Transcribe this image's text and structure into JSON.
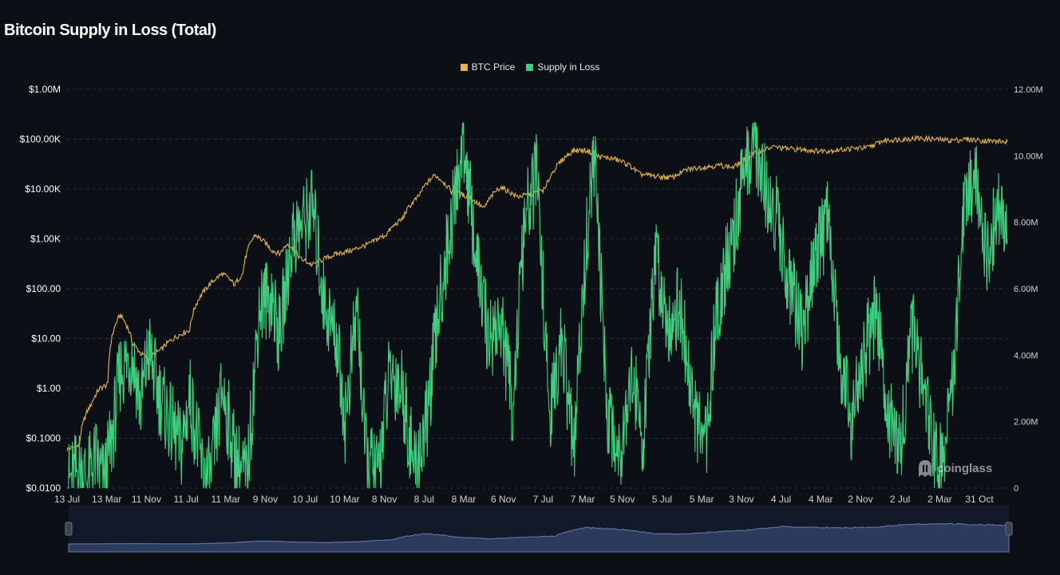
{
  "title": "Bitcoin Supply in Loss (Total)",
  "watermark": "coinglass",
  "legend": [
    {
      "label": "BTC Price",
      "color": "#e8b34b"
    },
    {
      "label": "Supply in Loss",
      "color": "#3ecf7e"
    }
  ],
  "chart_data": {
    "type": "line",
    "x_tick_labels": [
      "13 Jul",
      "13 Mar",
      "11 Nov",
      "11 Jul",
      "11 Mar",
      "9 Nov",
      "10 Jul",
      "10 Mar",
      "8 Nov",
      "8 Jul",
      "8 Mar",
      "6 Nov",
      "7 Jul",
      "7 Mar",
      "5 Nov",
      "5 Jul",
      "5 Mar",
      "3 Nov",
      "4 Jul",
      "4 Mar",
      "2 Nov",
      "2 Jul",
      "2 Mar",
      "31 Oct"
    ],
    "y_left": {
      "scale": "log",
      "ticks": [
        "$1.00M",
        "$100.00K",
        "$10.00K",
        "$1.00K",
        "$100.00",
        "$10.00",
        "$1.00",
        "$0.1000",
        "$0.0100"
      ],
      "range": [
        0.01,
        1000000
      ]
    },
    "y_right": {
      "scale": "linear",
      "ticks": [
        "12.00M",
        "10.00M",
        "8.00M",
        "6.00M",
        "4.00M",
        "2.00M",
        "0"
      ],
      "range": [
        0,
        12000000
      ]
    },
    "grid": true,
    "legend_position": "top-center",
    "x_range": [
      0,
      23
    ],
    "series": [
      {
        "name": "BTC Price",
        "axis": "left",
        "color": "#e8b34b",
        "x": [
          0,
          0.3,
          0.6,
          0.8,
          1.0,
          1.3,
          1.6,
          1.8,
          2.0,
          2.3,
          2.6,
          3.0,
          3.4,
          3.8,
          4.1,
          4.3,
          4.6,
          5.0,
          5.2,
          5.4,
          5.7,
          6.0,
          6.3,
          6.6,
          7.0,
          7.4,
          7.8,
          8.2,
          8.6,
          9.0,
          9.4,
          9.8,
          10.2,
          10.6,
          11.0,
          11.2,
          11.4,
          11.7,
          12.0,
          12.4,
          12.7,
          13.0,
          13.4,
          13.7,
          14.0,
          14.4,
          14.8,
          15.2,
          15.6,
          16.0,
          16.3,
          16.6,
          17.0,
          17.3,
          17.6,
          18.0,
          18.4,
          18.8,
          19.2,
          19.6,
          20.0,
          20.4,
          20.8,
          21.2,
          21.6,
          22.0,
          22.4,
          22.8,
          23.0
        ],
        "values": [
          0.06,
          0.07,
          0.5,
          1.0,
          1.2,
          30,
          8,
          5,
          4,
          6,
          10,
          15,
          100,
          200,
          120,
          200,
          1200,
          600,
          500,
          800,
          400,
          300,
          400,
          500,
          600,
          800,
          1200,
          2500,
          7000,
          19000,
          9000,
          7000,
          4000,
          11000,
          7000,
          7500,
          8000,
          10000,
          30000,
          60000,
          60000,
          45000,
          40000,
          32000,
          20000,
          18000,
          17000,
          25000,
          28000,
          30000,
          27000,
          40000,
          60000,
          70000,
          65000,
          62000,
          58000,
          60000,
          65000,
          68000,
          95000,
          100000,
          105000,
          100000,
          95000,
          100000,
          94000,
          90000,
          88000
        ]
      },
      {
        "name": "Supply in Loss",
        "axis": "right",
        "color": "#3ecf7e",
        "x": [
          0,
          0.3,
          0.5,
          0.7,
          0.9,
          1.1,
          1.3,
          1.6,
          1.8,
          2.0,
          2.2,
          2.5,
          2.8,
          3.0,
          3.3,
          3.5,
          3.8,
          4.1,
          4.4,
          4.7,
          5.0,
          5.2,
          5.5,
          5.8,
          6.0,
          6.3,
          6.6,
          6.8,
          7.1,
          7.3,
          7.6,
          7.9,
          8.2,
          8.5,
          8.8,
          9.1,
          9.4,
          9.7,
          10.0,
          10.3,
          10.6,
          10.9,
          11.2,
          11.5,
          11.8,
          12.1,
          12.4,
          12.7,
          12.9,
          13.2,
          13.5,
          13.8,
          14.1,
          14.4,
          14.7,
          15.0,
          15.3,
          15.6,
          15.9,
          16.2,
          16.5,
          16.8,
          17.1,
          17.4,
          17.7,
          18.0,
          18.3,
          18.6,
          18.9,
          19.2,
          19.5,
          19.8,
          20.1,
          20.4,
          20.7,
          21.0,
          21.3,
          21.6,
          21.9,
          22.2,
          22.5,
          22.8,
          23.0
        ],
        "values": [
          100000,
          600000,
          300000,
          900000,
          150000,
          1500000,
          3500000,
          4000000,
          2500000,
          4200000,
          3000000,
          2000000,
          1200000,
          2800000,
          600000,
          200000,
          3000000,
          1000000,
          200000,
          5500000,
          5800000,
          4500000,
          7500000,
          8000000,
          8500000,
          5500000,
          4500000,
          2000000,
          5500000,
          1000000,
          400000,
          3500000,
          3000000,
          500000,
          2000000,
          5500000,
          8000000,
          10500000,
          7000000,
          4500000,
          5000000,
          2500000,
          8000000,
          9500000,
          2000000,
          4500000,
          1000000,
          7500000,
          10000000,
          2500000,
          1000000,
          3500000,
          1500000,
          7000000,
          5000000,
          5500000,
          2500000,
          1000000,
          5500000,
          7000000,
          9000000,
          10500000,
          9000000,
          8000000,
          6000000,
          4500000,
          7000000,
          8000000,
          4000000,
          2000000,
          4000000,
          5500000,
          2000000,
          1500000,
          5000000,
          2500000,
          500000,
          2000000,
          8000000,
          9500000,
          7000000,
          8500000,
          7500000
        ]
      }
    ],
    "navigator": {
      "values": [
        0.06,
        0.5,
        30,
        5,
        10,
        200,
        1200,
        500,
        300,
        800,
        2500,
        19000,
        7000,
        4000,
        7000,
        10000,
        60000,
        45000,
        20000,
        17000,
        28000,
        40000,
        70000,
        62000,
        60000,
        68000,
        100000,
        105000,
        95000,
        88000
      ]
    }
  }
}
